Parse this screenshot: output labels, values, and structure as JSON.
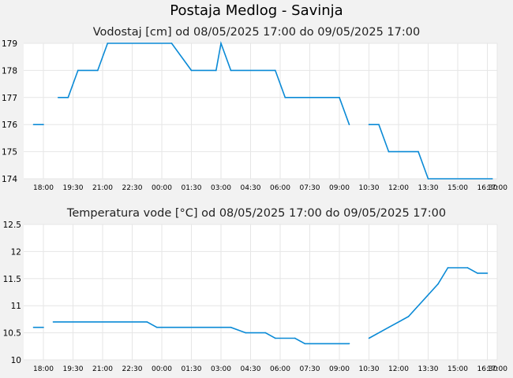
{
  "title": "Postaja Medlog - Savinja",
  "chart_data": [
    {
      "type": "line",
      "title": "Vodostaj [cm] od 08/05/2025 17:00 do 09/05/2025 17:00",
      "xlabel": "",
      "ylabel": "",
      "xlim": [
        "2025-05-08 17:00",
        "2025-05-09 17:00"
      ],
      "ylim": [
        174,
        179
      ],
      "yticks": [
        "174",
        "175",
        "176",
        "177",
        "178",
        "179"
      ],
      "xticks": [
        "18:00",
        "19:30",
        "21:00",
        "22:30",
        "00:00",
        "01:30",
        "03:00",
        "04:30",
        "06:00",
        "07:30",
        "09:00",
        "10:30",
        "12:00",
        "13:30",
        "15:00",
        "16:30",
        "17:00"
      ],
      "xtick_times": [
        "2025-05-08 18:00",
        "2025-05-08 19:30",
        "2025-05-08 21:00",
        "2025-05-08 22:30",
        "2025-05-09 00:00",
        "2025-05-09 01:30",
        "2025-05-09 03:00",
        "2025-05-09 04:30",
        "2025-05-09 06:00",
        "2025-05-09 07:30",
        "2025-05-09 09:00",
        "2025-05-09 10:30",
        "2025-05-09 12:00",
        "2025-05-09 13:30",
        "2025-05-09 15:00",
        "2025-05-09 16:30",
        "2025-05-09 17:00"
      ],
      "grid": true,
      "color": "#0a8ad6",
      "segments": [
        [
          [
            "2025-05-08 17:30",
            176
          ],
          [
            "2025-05-08 18:00",
            176
          ]
        ],
        [
          [
            "2025-05-08 18:45",
            177
          ],
          [
            "2025-05-08 19:15",
            177
          ],
          [
            "2025-05-08 19:45",
            178
          ],
          [
            "2025-05-08 20:45",
            178
          ],
          [
            "2025-05-08 21:15",
            179
          ],
          [
            "2025-05-09 00:30",
            179
          ],
          [
            "2025-05-09 01:30",
            178
          ],
          [
            "2025-05-09 02:45",
            178
          ],
          [
            "2025-05-09 03:00",
            179
          ],
          [
            "2025-05-09 03:30",
            178
          ],
          [
            "2025-05-09 05:45",
            178
          ],
          [
            "2025-05-09 06:15",
            177
          ],
          [
            "2025-05-09 09:00",
            177
          ],
          [
            "2025-05-09 09:30",
            176
          ]
        ],
        [
          [
            "2025-05-09 10:30",
            176
          ],
          [
            "2025-05-09 11:00",
            176
          ],
          [
            "2025-05-09 11:30",
            175
          ],
          [
            "2025-05-09 13:00",
            175
          ],
          [
            "2025-05-09 13:30",
            174
          ],
          [
            "2025-05-09 16:45",
            174
          ]
        ]
      ]
    },
    {
      "type": "line",
      "title": "Temperatura vode [°C] od 08/05/2025 17:00 do 09/05/2025 17:00",
      "xlabel": "",
      "ylabel": "",
      "xlim": [
        "2025-05-08 17:00",
        "2025-05-09 17:00"
      ],
      "ylim": [
        10,
        12.5
      ],
      "yticks": [
        "10",
        "10.5",
        "11",
        "11.5",
        "12",
        "12.5"
      ],
      "xticks": [
        "18:00",
        "19:30",
        "21:00",
        "22:30",
        "00:00",
        "01:30",
        "03:00",
        "04:30",
        "06:00",
        "07:30",
        "09:00",
        "10:30",
        "12:00",
        "13:30",
        "15:00",
        "16:30",
        "17:00"
      ],
      "xtick_times": [
        "2025-05-08 18:00",
        "2025-05-08 19:30",
        "2025-05-08 21:00",
        "2025-05-08 22:30",
        "2025-05-09 00:00",
        "2025-05-09 01:30",
        "2025-05-09 03:00",
        "2025-05-09 04:30",
        "2025-05-09 06:00",
        "2025-05-09 07:30",
        "2025-05-09 09:00",
        "2025-05-09 10:30",
        "2025-05-09 12:00",
        "2025-05-09 13:30",
        "2025-05-09 15:00",
        "2025-05-09 16:30",
        "2025-05-09 17:00"
      ],
      "grid": true,
      "color": "#0a8ad6",
      "segments": [
        [
          [
            "2025-05-08 17:30",
            10.6
          ],
          [
            "2025-05-08 18:00",
            10.6
          ]
        ],
        [
          [
            "2025-05-08 18:30",
            10.7
          ],
          [
            "2025-05-08 23:15",
            10.7
          ],
          [
            "2025-05-08 23:45",
            10.6
          ],
          [
            "2025-05-09 03:30",
            10.6
          ],
          [
            "2025-05-09 04:15",
            10.5
          ],
          [
            "2025-05-09 05:15",
            10.5
          ],
          [
            "2025-05-09 05:45",
            10.4
          ],
          [
            "2025-05-09 06:45",
            10.4
          ],
          [
            "2025-05-09 07:15",
            10.3
          ],
          [
            "2025-05-09 09:30",
            10.3
          ]
        ],
        [
          [
            "2025-05-09 10:30",
            10.4
          ],
          [
            "2025-05-09 11:30",
            10.6
          ],
          [
            "2025-05-09 12:30",
            10.8
          ],
          [
            "2025-05-09 14:00",
            11.4
          ],
          [
            "2025-05-09 14:30",
            11.7
          ],
          [
            "2025-05-09 15:30",
            11.7
          ],
          [
            "2025-05-09 16:00",
            11.6
          ],
          [
            "2025-05-09 16:30",
            11.6
          ]
        ]
      ]
    }
  ]
}
